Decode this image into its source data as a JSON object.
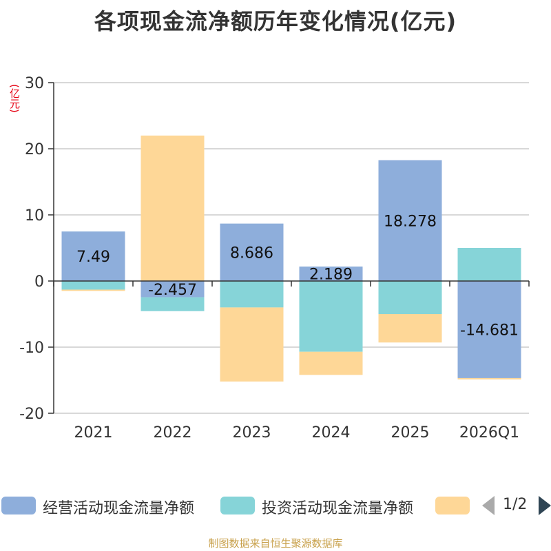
{
  "chart_data": {
    "type": "bar",
    "stacked": true,
    "title": "各项现金流净额历年变化情况(亿元)",
    "ylabel": "(亿元)",
    "ylim": [
      -20,
      30
    ],
    "yticks": [
      30,
      20,
      10,
      0,
      -10,
      -20
    ],
    "categories": [
      "2021",
      "2022",
      "2023",
      "2024",
      "2025",
      "2026Q1"
    ],
    "series": [
      {
        "name": "经营活动现金流量净额",
        "color": "#8eaedb",
        "values": [
          7.49,
          -2.457,
          8.686,
          2.189,
          18.278,
          -14.681
        ],
        "labels": [
          "7.49",
          "-2.457",
          "8.686",
          "2.189",
          "18.278",
          "-14.681"
        ]
      },
      {
        "name": "投资活动现金流量净额",
        "color": "#86d4d8",
        "values": [
          -1.3,
          -2.1,
          -4.0,
          -10.7,
          -5.0,
          5.0
        ]
      },
      {
        "name": "",
        "color": "#fed797",
        "values": [
          -0.2,
          22.0,
          -11.2,
          -3.5,
          -4.3,
          -0.2
        ]
      }
    ],
    "legend": "bottom",
    "grid": true
  },
  "pager": {
    "text": "1/2"
  },
  "source": "制图数据来自恒生聚源数据库"
}
